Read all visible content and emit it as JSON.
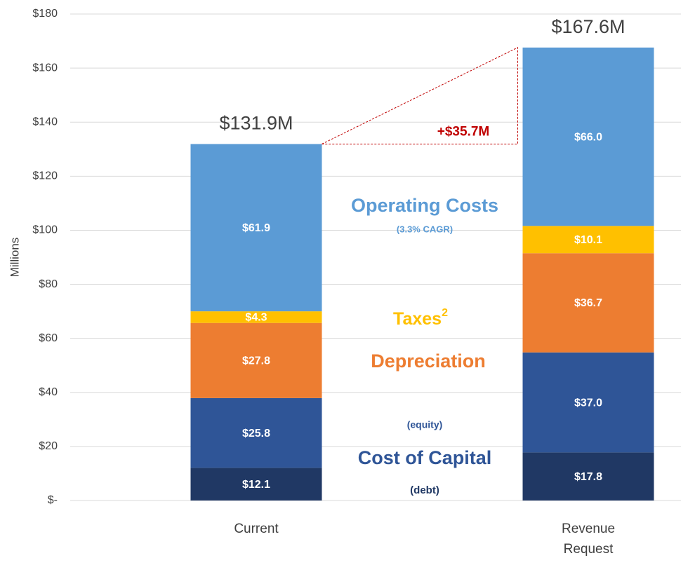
{
  "chart_data": {
    "type": "stacked_bar",
    "y_label": "Millions",
    "categories": [
      "Current",
      "Revenue Request"
    ],
    "series": [
      {
        "name": "(debt)",
        "group": "Cost of Capital",
        "color": "#203864",
        "values": [
          12.1,
          17.8
        ],
        "value_labels": [
          "$12.1",
          "$17.8"
        ]
      },
      {
        "name": "(equity)",
        "color": "#2f5597",
        "values": [
          25.8,
          37.0
        ],
        "value_labels": [
          "$25.8",
          "$37.0"
        ]
      },
      {
        "name": "Depreciation",
        "color": "#ed7d31",
        "values": [
          27.8,
          36.7
        ],
        "value_labels": [
          "$27.8",
          "$36.7"
        ]
      },
      {
        "name": "Taxes",
        "superscript": "2",
        "color": "#ffc000",
        "values": [
          4.3,
          10.1
        ],
        "value_labels": [
          "$4.3",
          "$10.1"
        ]
      },
      {
        "name": "Operating Costs",
        "note": "(3.3% CAGR)",
        "color": "#5b9bd5",
        "values": [
          61.9,
          66.0
        ],
        "value_labels": [
          "$61.9",
          "$66.0"
        ]
      }
    ],
    "totals": {
      "values": [
        131.9,
        167.6
      ],
      "value_labels": [
        "$131.9M",
        "$167.6M"
      ]
    },
    "difference": {
      "value": 35.7,
      "label": "+$35.7M",
      "color": "#c00000"
    },
    "ylim": [
      0,
      180
    ],
    "yticks": [
      {
        "value": 0,
        "label": "$-"
      },
      {
        "value": 20,
        "label": "$20"
      },
      {
        "value": 40,
        "label": "$40"
      },
      {
        "value": 60,
        "label": "$60"
      },
      {
        "value": 80,
        "label": "$80"
      },
      {
        "value": 100,
        "label": "$100"
      },
      {
        "value": 120,
        "label": "$120"
      },
      {
        "value": 140,
        "label": "$140"
      },
      {
        "value": 160,
        "label": "$160"
      },
      {
        "value": 180,
        "label": "$180"
      }
    ],
    "grid": true
  }
}
